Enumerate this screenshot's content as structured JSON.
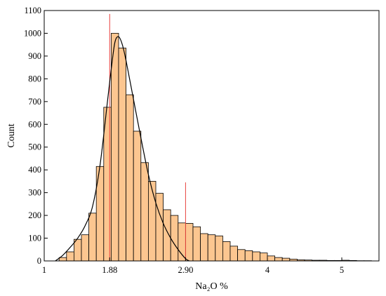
{
  "chart_data": {
    "type": "bar",
    "xlabel": "Na₂O %",
    "ylabel": "Count",
    "xlim": [
      1.0,
      5.5
    ],
    "ylim": [
      0,
      1100
    ],
    "yticks": [
      0,
      100,
      200,
      300,
      400,
      500,
      600,
      700,
      800,
      900,
      1000,
      1100
    ],
    "xticks": [
      {
        "value": 1.0,
        "label": "1"
      },
      {
        "value": 1.88,
        "label": "1.88"
      },
      {
        "value": 2.9,
        "label": "2.90"
      },
      {
        "value": 4.0,
        "label": "4"
      },
      {
        "value": 5.0,
        "label": "5"
      }
    ],
    "bin_start": 1.2,
    "bin_width": 0.1,
    "values": [
      15,
      40,
      95,
      115,
      210,
      415,
      675,
      1000,
      935,
      730,
      570,
      432,
      350,
      297,
      225,
      200,
      167,
      165,
      150,
      120,
      115,
      110,
      85,
      65,
      50,
      45,
      40,
      35,
      22,
      15,
      12,
      8,
      5,
      4,
      3,
      3,
      2,
      2,
      3,
      2,
      1,
      1
    ],
    "fit_curve": {
      "x": [
        1.15,
        1.25,
        1.35,
        1.45,
        1.55,
        1.65,
        1.75,
        1.85,
        1.9,
        1.95,
        2.0,
        2.05,
        2.1,
        2.2,
        2.3,
        2.4,
        2.5,
        2.6,
        2.7,
        2.8,
        2.9,
        2.95
      ],
      "y": [
        0,
        25,
        60,
        100,
        155,
        240,
        420,
        700,
        840,
        960,
        985,
        950,
        880,
        710,
        540,
        380,
        255,
        165,
        100,
        50,
        10,
        0
      ]
    },
    "markers": [
      {
        "x": 1.88,
        "top": 1085
      },
      {
        "x": 2.9,
        "top": 345
      }
    ],
    "colors": {
      "bar_fill": "#fcc690",
      "bar_stroke": "#000000",
      "curve": "#000000",
      "marker": "#e8403c"
    }
  }
}
